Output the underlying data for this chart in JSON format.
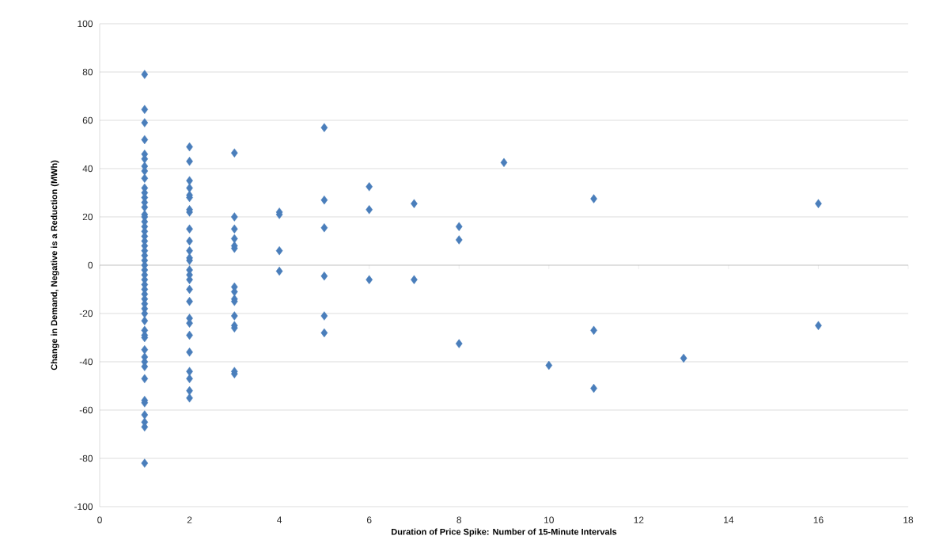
{
  "chart_data": {
    "type": "scatter",
    "xlabel": "Duration of Price Spike:  Number of 15-Minute Intervals",
    "ylabel": "Change in Demand, Negative is a Reduction (MWh)",
    "series": [
      {
        "color": "#4a7ebb",
        "x": [
          1,
          1,
          1,
          1,
          1,
          1,
          1,
          1,
          1,
          1,
          1,
          1,
          1,
          1,
          1,
          1,
          1,
          1,
          1,
          1,
          1,
          1,
          1,
          1,
          1,
          1,
          1,
          1,
          1,
          1,
          1,
          1,
          1,
          1,
          1,
          1,
          1,
          1,
          1,
          1,
          1,
          1,
          1,
          1,
          1,
          1,
          1,
          1,
          1,
          1,
          1,
          2,
          2,
          2,
          2,
          2,
          2,
          2,
          2,
          2,
          2,
          2,
          2,
          2,
          2,
          2,
          2,
          2,
          2,
          2,
          2,
          2,
          2,
          2,
          2,
          2,
          2,
          3,
          3,
          3,
          3,
          3,
          3,
          3,
          3,
          3,
          3,
          3,
          3,
          3,
          3,
          3,
          4,
          4,
          4,
          4,
          5,
          5,
          5,
          5,
          5,
          5,
          6,
          6,
          6,
          7,
          7,
          8,
          8,
          8,
          9,
          10,
          11,
          11,
          11,
          13,
          16,
          16
        ],
        "values": [
          79,
          64.5,
          59,
          52,
          46,
          44,
          41,
          39,
          36,
          32,
          30,
          28,
          26,
          24,
          21,
          20,
          18,
          16,
          14,
          12,
          10,
          8,
          6,
          4,
          2,
          0,
          -2,
          -4,
          -6,
          -8,
          -10,
          -12,
          -14,
          -16,
          -18,
          -20,
          -23,
          -27,
          -29,
          -30,
          -35,
          -38,
          -40,
          -42,
          -47,
          -56,
          -57,
          -62,
          -65,
          -67,
          -82,
          49,
          43,
          35,
          32,
          29,
          28,
          23,
          22,
          15,
          10,
          6,
          3,
          2,
          -2,
          -4,
          -6,
          -10,
          -15,
          -22,
          -24,
          -29,
          -36,
          -44,
          -47,
          -52,
          -55,
          46.5,
          20,
          15,
          11,
          8,
          7,
          -9,
          -11,
          -14,
          -15,
          -21,
          -25,
          -26,
          -44,
          -45,
          22,
          21,
          6,
          -2.5,
          57,
          27,
          15.5,
          -4.5,
          -21,
          -28,
          32.5,
          23,
          -6,
          25.5,
          -6,
          16,
          10.5,
          -32.5,
          42.5,
          -41.5,
          27.5,
          -27,
          -51,
          -38.5,
          25.5,
          -25
        ]
      }
    ],
    "xlim": [
      0,
      18
    ],
    "xticks": [
      0,
      2,
      4,
      6,
      8,
      10,
      12,
      14,
      16,
      18
    ],
    "ylim": [
      -100,
      100
    ],
    "yticks": [
      -100,
      -80,
      -60,
      -40,
      -20,
      0,
      20,
      40,
      60,
      80,
      100
    ],
    "grid": "y",
    "marker": "diamond"
  }
}
